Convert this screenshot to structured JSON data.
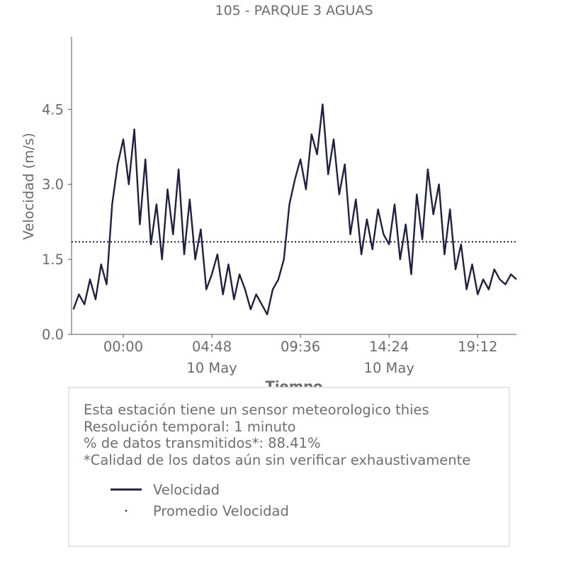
{
  "chart_data": {
    "type": "line",
    "title": "105 - PARQUE 3 AGUAS",
    "xlabel": "Tiempo",
    "ylabel": "Velocidad (m/s)",
    "y_ticks": [
      "0.0",
      "1.5",
      "3.0",
      "4.5"
    ],
    "y_tick_values": [
      0,
      1.5,
      3.0,
      4.5
    ],
    "x_ticks": [
      "00:00",
      "04:48",
      "09:36",
      "14:24",
      "19:12"
    ],
    "x_tick_hours": [
      0,
      4.8,
      9.6,
      14.4,
      19.2
    ],
    "x_date_labels": [
      {
        "text": "10 May",
        "hour": 4.8
      },
      {
        "text": "10 May",
        "hour": 14.4
      }
    ],
    "xlim_hours": [
      -2.8,
      21.3
    ],
    "ylim": [
      0,
      5.95
    ],
    "grid": false,
    "series": [
      {
        "name": "Velocidad",
        "color": "#1f2044",
        "style": "solid",
        "x_hours": [
          -2.7,
          -2.4,
          -2.1,
          -1.8,
          -1.5,
          -1.2,
          -0.9,
          -0.6,
          -0.3,
          0.0,
          0.3,
          0.6,
          0.9,
          1.2,
          1.5,
          1.8,
          2.1,
          2.4,
          2.7,
          3.0,
          3.3,
          3.6,
          3.9,
          4.2,
          4.5,
          4.8,
          5.1,
          5.4,
          5.7,
          6.0,
          6.3,
          6.6,
          6.9,
          7.2,
          7.5,
          7.8,
          8.1,
          8.4,
          8.7,
          9.0,
          9.3,
          9.6,
          9.9,
          10.2,
          10.5,
          10.8,
          11.1,
          11.4,
          11.7,
          12.0,
          12.3,
          12.6,
          12.9,
          13.2,
          13.5,
          13.8,
          14.1,
          14.4,
          14.7,
          15.0,
          15.3,
          15.6,
          15.9,
          16.2,
          16.5,
          16.8,
          17.1,
          17.4,
          17.7,
          18.0,
          18.3,
          18.6,
          18.9,
          19.2,
          19.5,
          19.8,
          20.1,
          20.4,
          20.7,
          21.0,
          21.3
        ],
        "values": [
          0.5,
          0.8,
          0.6,
          1.1,
          0.7,
          1.4,
          1.0,
          2.6,
          3.4,
          3.9,
          3.0,
          4.1,
          2.2,
          3.5,
          1.8,
          2.6,
          1.5,
          2.9,
          2.0,
          3.3,
          1.6,
          2.7,
          1.5,
          2.1,
          0.9,
          1.2,
          1.6,
          0.8,
          1.4,
          0.7,
          1.2,
          0.9,
          0.5,
          0.8,
          0.6,
          0.4,
          0.9,
          1.1,
          1.5,
          2.6,
          3.1,
          3.5,
          2.9,
          4.0,
          3.6,
          4.6,
          3.2,
          3.9,
          2.8,
          3.4,
          2.0,
          2.7,
          1.6,
          2.3,
          1.7,
          2.5,
          2.0,
          1.8,
          2.6,
          1.5,
          2.2,
          1.2,
          2.8,
          1.9,
          3.3,
          2.4,
          3.0,
          1.6,
          2.5,
          1.3,
          1.8,
          0.9,
          1.4,
          0.8,
          1.1,
          0.9,
          1.3,
          1.1,
          1.0,
          1.2,
          1.1
        ]
      },
      {
        "name": "Promedio Velocidad",
        "color": "#1f2044",
        "style": "dotted",
        "values": [
          1.85
        ]
      }
    ]
  },
  "info": {
    "lines": [
      "Esta estación tiene un sensor meteorologico thies",
      "Resolución temporal: 1 minuto",
      "% de datos transmitidos*: 88.41%",
      "*Calidad de los datos aún sin verificar exhaustivamente"
    ]
  },
  "legend": {
    "velocidad": "Velocidad",
    "promedio": "Promedio Velocidad"
  },
  "colors": {
    "series": "#1f2044",
    "text": "#6e6e6e",
    "axis": "#555555",
    "box_border": "#e6e6e6"
  }
}
